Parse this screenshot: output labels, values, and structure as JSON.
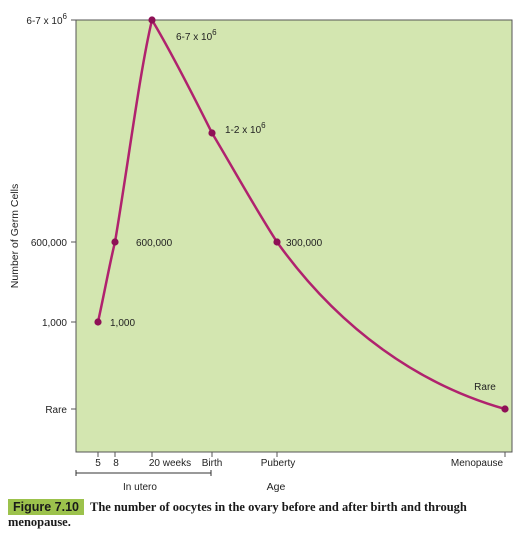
{
  "chart_data": {
    "type": "line",
    "ylabel": "Number of Germ Cells",
    "xlabel": "Age",
    "y_ticks": [
      "Rare",
      "1,000",
      "600,000",
      "6-7 x 10^6"
    ],
    "x_ticks": [
      "5",
      "8",
      "20 weeks",
      "Birth",
      "Puberty",
      "Menopause"
    ],
    "x_group_label": "In utero",
    "series": [
      {
        "points": [
          {
            "x": "5",
            "y": "1,000",
            "label": "1,000"
          },
          {
            "x": "8",
            "y": "600,000",
            "label": "600,000"
          },
          {
            "x": "20 weeks",
            "y": "6-7 x 10^6",
            "label": "6-7 x 10^6"
          },
          {
            "x": "Birth",
            "y": "1-2 x 10^6",
            "label": "1-2 x 10^6"
          },
          {
            "x": "Puberty",
            "y": "300,000",
            "label": "300,000"
          },
          {
            "x": "Menopause",
            "y": "Rare",
            "label": "Rare"
          }
        ]
      }
    ],
    "background_color": "#d3e6b0",
    "line_color": "#b0226e",
    "point_color": "#8e1056",
    "grid": false
  },
  "caption": {
    "label": "Figure 7.10",
    "text": "The number of oocytes in the ovary before and after birth and through menopause."
  }
}
